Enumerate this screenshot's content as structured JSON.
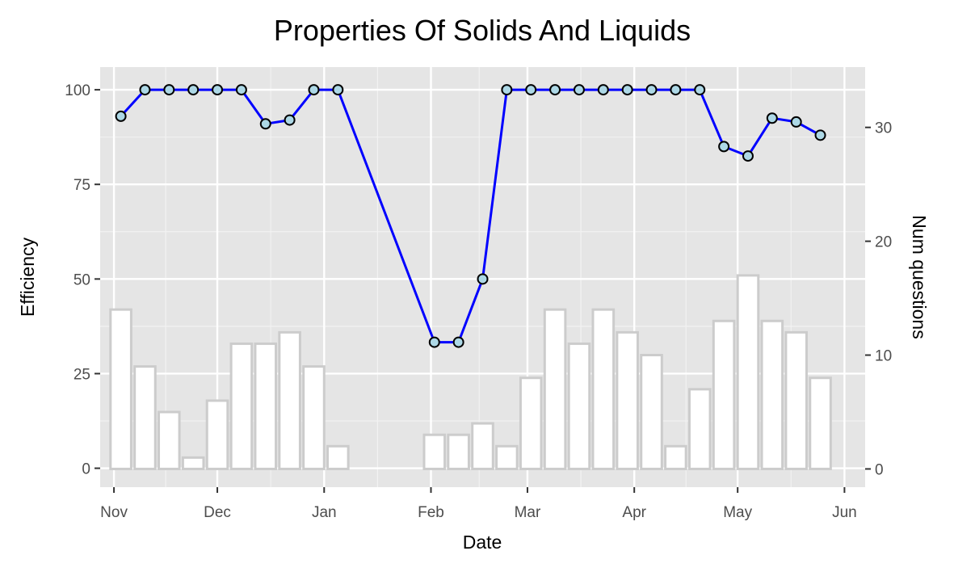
{
  "chart_data": {
    "type": "bar+line",
    "title": "Properties Of Solids And Liquids",
    "xlabel": "Date",
    "ylabel": "Efficiency",
    "y2label": "Num questions",
    "x_ticks": [
      "Nov",
      "Dec",
      "Jan",
      "Feb",
      "Mar",
      "Apr",
      "May",
      "Jun"
    ],
    "x_tick_dates": [
      "2020-11-01",
      "2020-12-01",
      "2021-01-01",
      "2021-02-01",
      "2021-03-01",
      "2021-04-01",
      "2021-05-01",
      "2021-06-01"
    ],
    "y_ticks": [
      "0",
      "25",
      "50",
      "75",
      "100"
    ],
    "y_tick_values": [
      0,
      25,
      50,
      75,
      100
    ],
    "y2_ticks": [
      "0",
      "10",
      "20",
      "30"
    ],
    "y2_tick_values": [
      0,
      10,
      20,
      30
    ],
    "xlim": [
      "2020-10-28",
      "2021-06-07"
    ],
    "ylim": [
      -5,
      106
    ],
    "y2lim": [
      -1.6,
      35.3
    ],
    "grid": true,
    "panel_background": "#e5e5e5",
    "bars": {
      "name": "Num questions",
      "fill": "#ffffff",
      "stroke": "#cccccc",
      "dates": [
        "2020-11-03",
        "2020-11-10",
        "2020-11-17",
        "2020-11-24",
        "2020-12-01",
        "2020-12-08",
        "2020-12-15",
        "2020-12-22",
        "2020-12-29",
        "2021-01-05",
        "2021-02-02",
        "2021-02-09",
        "2021-02-16",
        "2021-02-23",
        "2021-03-02",
        "2021-03-09",
        "2021-03-16",
        "2021-03-23",
        "2021-03-30",
        "2021-04-06",
        "2021-04-13",
        "2021-04-20",
        "2021-04-27",
        "2021-05-04",
        "2021-05-11",
        "2021-05-18",
        "2021-05-25"
      ],
      "values": [
        14,
        9,
        5,
        1,
        6,
        11,
        11,
        12,
        9,
        2,
        3,
        3,
        4,
        2,
        8,
        14,
        11,
        14,
        12,
        10,
        2,
        7,
        13,
        17,
        13,
        12,
        8
      ]
    },
    "line": {
      "name": "Efficiency",
      "color": "#0000ff",
      "point_fill": "#add8e6",
      "point_stroke": "#000000",
      "dates": [
        "2020-11-03",
        "2020-11-10",
        "2020-11-17",
        "2020-11-24",
        "2020-12-01",
        "2020-12-08",
        "2020-12-15",
        "2020-12-22",
        "2020-12-29",
        "2021-01-05",
        "2021-02-02",
        "2021-02-09",
        "2021-02-16",
        "2021-02-23",
        "2021-03-02",
        "2021-03-09",
        "2021-03-16",
        "2021-03-23",
        "2021-03-30",
        "2021-04-06",
        "2021-04-13",
        "2021-04-20",
        "2021-04-27",
        "2021-05-04",
        "2021-05-11",
        "2021-05-18",
        "2021-05-25"
      ],
      "values": [
        93,
        100,
        100,
        100,
        100,
        100,
        91,
        92,
        100,
        100,
        33.3,
        33.3,
        50,
        100,
        100,
        100,
        100,
        100,
        100,
        100,
        100,
        100,
        85,
        82.5,
        92.5,
        91.5,
        88
      ]
    }
  }
}
